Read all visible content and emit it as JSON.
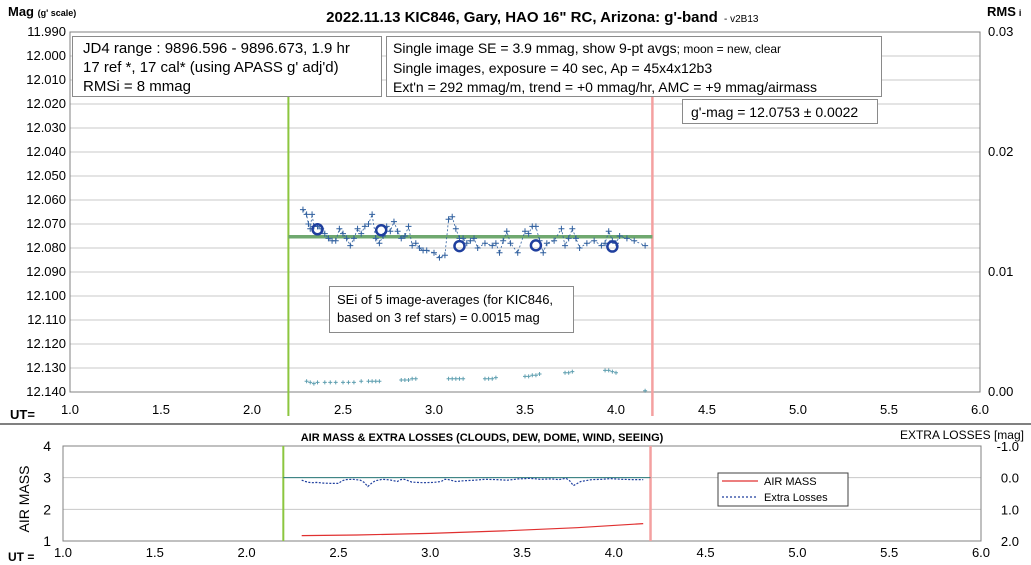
{
  "top_chart": {
    "title": "2022.11.13 KIC846, Gary, HAO 16\" RC, Arizona: g'-band",
    "version": "- v2B13",
    "ylabel_main": "Mag",
    "ylabel_sub": "(g' scale)",
    "y2label_main": "RMS",
    "y2label_sub": "i",
    "xlabel": "UT=",
    "info_box_1": [
      "JD4 range : 9896.596 - 9896.673,  1.9 hr",
      "17 ref *, 17 cal* (using APASS g' adj'd)",
      "RMSi = 8 mmag"
    ],
    "info_box_2_line1_main": "Single image SE = 3.9 mmag, show  9-pt avgs",
    "info_box_2_line1_small": "; moon = new, clear",
    "info_box_2_lines": [
      "Single images, exposure = 40 sec, Ap = 45x4x12b3",
      "Ext'n = 292 mmag/m, trend = +0 mmag/hr, AMC = +9 mmag/airmass"
    ],
    "gmag_box": "g'-mag = 12.0753 ± 0.0022",
    "sei_box": [
      "SEi of 5 image-averages (for KIC846,",
      "based on 3 ref stars) = 0.0015 mag"
    ]
  },
  "bottom_chart": {
    "title": "AIR MASS & EXTRA LOSSES (CLOUDS, DEW, DOME, WIND, SEEING)",
    "ylabel": "AIR MASS",
    "y2label": "EXTRA LOSSES [mag]",
    "xlabel": "UT =",
    "legend": [
      "AIR MASS",
      "Extra Losses"
    ]
  },
  "colors": {
    "series": "#2f5f9e",
    "avg_circle": "#1f3f9e",
    "trend": "#6fa86f",
    "rms": "#5f9fb0",
    "airmass": "#e03030",
    "start_line": "#8cc63f",
    "end_line": "#f4a0a0",
    "grid": "#c8c8c8"
  },
  "chart_data": [
    {
      "type": "scatter",
      "title": "2022.11.13 KIC846, Gary, HAO 16\" RC, Arizona: g'-band",
      "xlabel": "UT=",
      "ylabel": "Mag (g' scale)",
      "y2label": "RMSi",
      "xlim": [
        1.0,
        6.0
      ],
      "ylim": [
        12.14,
        11.99
      ],
      "y2lim": [
        0.0,
        0.03
      ],
      "x_ticks": [
        "1.0",
        "1.5",
        "2.0",
        "2.5",
        "3.0",
        "3.5",
        "4.0",
        "4.5",
        "5.0",
        "5.5",
        "6.0"
      ],
      "y_ticks": [
        "11.990",
        "12.000",
        "12.010",
        "12.020",
        "12.030",
        "12.040",
        "12.050",
        "12.060",
        "12.070",
        "12.080",
        "12.090",
        "12.100",
        "12.110",
        "12.120",
        "12.130",
        "12.140"
      ],
      "y2_ticks": [
        "0.03",
        "0.02",
        "0.01",
        "0.00"
      ],
      "grid": true,
      "vertical_lines": [
        2.2,
        4.2
      ],
      "trend_line": {
        "x": [
          2.2,
          4.2
        ],
        "y": 12.0753
      },
      "series": [
        {
          "marker": "plus",
          "x": [
            2.28,
            2.3,
            2.31,
            2.32,
            2.33,
            2.34,
            2.36,
            2.38,
            2.4,
            2.42,
            2.44,
            2.46,
            2.48,
            2.5,
            2.52,
            2.54,
            2.56,
            2.58,
            2.6,
            2.62,
            2.64,
            2.66,
            2.68,
            2.7,
            2.72,
            2.74,
            2.76,
            2.78,
            2.8,
            2.82,
            2.84,
            2.86,
            2.88,
            2.9,
            2.92,
            2.94,
            2.96,
            3.0,
            3.03,
            3.06,
            3.08,
            3.1,
            3.12,
            3.14,
            3.16,
            3.18,
            3.2,
            3.22,
            3.24,
            3.28,
            3.32,
            3.34,
            3.36,
            3.38,
            3.4,
            3.42,
            3.46,
            3.5,
            3.52,
            3.54,
            3.56,
            3.58,
            3.6,
            3.62,
            3.66,
            3.7,
            3.72,
            3.74,
            3.76,
            3.78,
            3.8,
            3.84,
            3.88,
            3.92,
            3.94,
            3.96,
            3.98,
            4.0,
            4.02,
            4.06,
            4.1,
            4.16
          ],
          "y": [
            12.064,
            12.066,
            12.07,
            12.072,
            12.066,
            12.071,
            12.071,
            12.072,
            12.074,
            12.076,
            12.077,
            12.077,
            12.072,
            12.074,
            12.076,
            12.079,
            12.076,
            12.072,
            12.074,
            12.071,
            12.07,
            12.066,
            12.076,
            12.078,
            12.075,
            12.071,
            12.073,
            12.069,
            12.073,
            12.076,
            12.075,
            12.071,
            12.079,
            12.078,
            12.08,
            12.081,
            12.081,
            12.082,
            12.084,
            12.083,
            12.068,
            12.067,
            12.072,
            12.076,
            12.076,
            12.078,
            12.077,
            12.076,
            12.08,
            12.078,
            12.079,
            12.078,
            12.082,
            12.077,
            12.073,
            12.078,
            12.082,
            12.073,
            12.074,
            12.071,
            12.071,
            12.077,
            12.082,
            12.078,
            12.077,
            12.072,
            12.079,
            12.076,
            12.072,
            12.076,
            12.08,
            12.078,
            12.077,
            12.079,
            12.078,
            12.073,
            12.077,
            12.078,
            12.075,
            12.076,
            12.077,
            12.079
          ]
        },
        {
          "marker": "circle",
          "x": [
            2.36,
            2.71,
            3.14,
            3.56,
            3.98
          ],
          "y": [
            12.0722,
            12.0726,
            12.0792,
            12.0789,
            12.0794
          ]
        },
        {
          "marker": "small-plus",
          "axis": "y2",
          "x": [
            2.3,
            2.32,
            2.34,
            2.36,
            2.4,
            2.43,
            2.46,
            2.5,
            2.53,
            2.56,
            2.6,
            2.64,
            2.66,
            2.68,
            2.7,
            2.82,
            2.84,
            2.86,
            2.88,
            2.9,
            3.08,
            3.1,
            3.12,
            3.14,
            3.16,
            3.28,
            3.3,
            3.32,
            3.34,
            3.5,
            3.52,
            3.54,
            3.56,
            3.58,
            3.72,
            3.74,
            3.76,
            3.94,
            3.96,
            3.98,
            4.0,
            4.16
          ],
          "y": [
            0.0009,
            0.0008,
            0.0007,
            0.0008,
            0.0008,
            0.0008,
            0.0008,
            0.0008,
            0.0008,
            0.0008,
            0.0009,
            0.0009,
            0.0009,
            0.0009,
            0.0009,
            0.001,
            0.001,
            0.001,
            0.0011,
            0.0011,
            0.0011,
            0.0011,
            0.0011,
            0.0011,
            0.0011,
            0.0011,
            0.0011,
            0.0011,
            0.0012,
            0.0013,
            0.0013,
            0.0014,
            0.0014,
            0.0015,
            0.0016,
            0.0016,
            0.0017,
            0.0018,
            0.0018,
            0.0017,
            0.0016,
            0.0001
          ]
        }
      ]
    },
    {
      "type": "line",
      "title": "AIR MASS & EXTRA LOSSES (CLOUDS, DEW, DOME, WIND, SEEING)",
      "xlabel": "UT =",
      "ylabel": "AIR MASS",
      "y2label": "EXTRA LOSSES [mag]",
      "xlim": [
        1.0,
        6.0
      ],
      "ylim": [
        1,
        4
      ],
      "y2lim": [
        2.0,
        -1.0
      ],
      "x_ticks": [
        "1.0",
        "1.5",
        "2.0",
        "2.5",
        "3.0",
        "3.5",
        "4.0",
        "4.5",
        "5.0",
        "5.5",
        "6.0"
      ],
      "y_ticks": [
        "4",
        "3",
        "2",
        "1"
      ],
      "y2_ticks": [
        "-1.0",
        "0.0",
        "1.0",
        "2.0"
      ],
      "grid": true,
      "vertical_lines": [
        2.2,
        4.2
      ],
      "reference_line": {
        "axis": "y2",
        "y": 0.0,
        "x": [
          2.2,
          4.2
        ]
      },
      "legend_position": "right",
      "series": [
        {
          "name": "AIR MASS",
          "x": [
            2.3,
            2.6,
            3.0,
            3.4,
            3.8,
            4.16
          ],
          "y": [
            1.17,
            1.19,
            1.24,
            1.32,
            1.42,
            1.55
          ]
        },
        {
          "name": "Extra Losses",
          "axis": "y2",
          "x": [
            2.3,
            2.32,
            2.34,
            2.36,
            2.38,
            2.42,
            2.46,
            2.5,
            2.52,
            2.54,
            2.58,
            2.62,
            2.64,
            2.66,
            2.68,
            2.7,
            2.74,
            2.78,
            2.82,
            2.84,
            2.86,
            2.9,
            2.96,
            3.02,
            3.06,
            3.08,
            3.1,
            3.14,
            3.18,
            3.24,
            3.3,
            3.36,
            3.42,
            3.48,
            3.52,
            3.54,
            3.56,
            3.6,
            3.66,
            3.7,
            3.74,
            3.76,
            3.78,
            3.82,
            3.88,
            3.94,
            3.98,
            4.04,
            4.1,
            4.16
          ],
          "y": [
            0.08,
            0.12,
            0.15,
            0.16,
            0.15,
            0.17,
            0.18,
            0.18,
            0.1,
            0.06,
            0.05,
            0.08,
            0.15,
            0.28,
            0.18,
            0.1,
            0.05,
            0.07,
            0.12,
            0.06,
            0.05,
            0.14,
            0.16,
            0.15,
            0.12,
            0.05,
            0.06,
            0.12,
            0.1,
            0.08,
            0.05,
            0.06,
            0.08,
            0.04,
            0.03,
            0.02,
            0.03,
            0.05,
            0.04,
            0.06,
            0.02,
            0.1,
            0.25,
            0.12,
            0.06,
            0.05,
            0.03,
            0.05,
            0.06,
            0.06
          ]
        }
      ]
    }
  ]
}
